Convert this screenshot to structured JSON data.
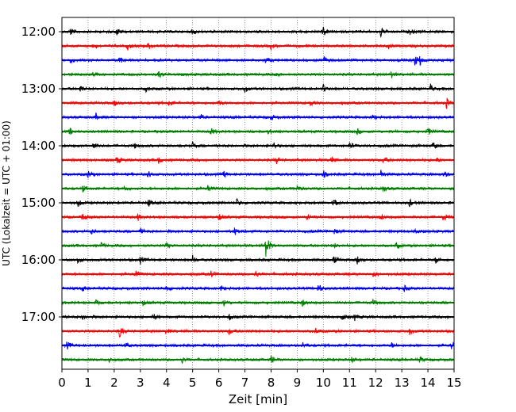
{
  "chart_data": {
    "type": "line",
    "title": "",
    "xlabel": "Zeit  [min]",
    "ylabel": "UTC (Lokalzeit = UTC + 01:00)",
    "xlim": [
      0,
      15
    ],
    "x_ticks": [
      "0",
      "1",
      "2",
      "3",
      "4",
      "5",
      "6",
      "7",
      "8",
      "9",
      "10",
      "11",
      "12",
      "13",
      "14",
      "15"
    ],
    "y_ticks": [
      "12:00",
      "13:00",
      "14:00",
      "15:00",
      "16:00",
      "17:00"
    ],
    "grid_x": true,
    "trace_colors": [
      "#000000",
      "#ff0000",
      "#0000ff",
      "#008000"
    ],
    "traces": [
      {
        "start": "12:00",
        "events": [
          [
            0.3,
            0.8
          ],
          [
            2.1,
            0.7
          ],
          [
            5.0,
            0.6
          ],
          [
            10.0,
            0.8
          ],
          [
            12.2,
            0.9
          ],
          [
            13.3,
            0.5
          ]
        ]
      },
      {
        "start": "12:15",
        "events": [
          [
            1.2,
            0.6
          ],
          [
            2.5,
            0.7
          ],
          [
            3.3,
            0.5
          ],
          [
            8.0,
            0.5
          ],
          [
            12.5,
            0.6
          ]
        ]
      },
      {
        "start": "12:30",
        "events": [
          [
            0.3,
            0.5
          ],
          [
            2.2,
            0.6
          ],
          [
            7.8,
            0.6
          ],
          [
            10.0,
            0.8
          ],
          [
            13.5,
            1.0
          ],
          [
            13.7,
            0.8
          ]
        ]
      },
      {
        "start": "12:45",
        "events": [
          [
            1.2,
            0.5
          ],
          [
            3.7,
            0.7
          ],
          [
            8.2,
            0.5
          ],
          [
            12.6,
            0.6
          ]
        ]
      },
      {
        "start": "13:00",
        "events": [
          [
            0.7,
            0.6
          ],
          [
            3.2,
            0.5
          ],
          [
            7.0,
            0.6
          ],
          [
            10.0,
            0.6
          ],
          [
            14.1,
            0.7
          ]
        ]
      },
      {
        "start": "13:15",
        "events": [
          [
            2.0,
            0.5
          ],
          [
            4.1,
            0.6
          ],
          [
            6.0,
            0.5
          ],
          [
            9.5,
            0.5
          ],
          [
            14.7,
            1.0
          ]
        ]
      },
      {
        "start": "13:30",
        "events": [
          [
            1.3,
            0.5
          ],
          [
            5.3,
            0.5
          ],
          [
            8.0,
            0.5
          ],
          [
            11.9,
            0.5
          ]
        ]
      },
      {
        "start": "13:45",
        "events": [
          [
            0.3,
            0.6
          ],
          [
            5.7,
            0.6
          ],
          [
            7.9,
            0.6
          ],
          [
            11.3,
            0.5
          ],
          [
            14.0,
            0.7
          ]
        ]
      },
      {
        "start": "14:00",
        "events": [
          [
            1.2,
            0.7
          ],
          [
            2.8,
            0.5
          ],
          [
            5.0,
            0.6
          ],
          [
            8.1,
            0.6
          ],
          [
            11.0,
            0.7
          ],
          [
            14.2,
            0.7
          ]
        ]
      },
      {
        "start": "14:15",
        "events": [
          [
            2.1,
            0.7
          ],
          [
            3.7,
            0.5
          ],
          [
            8.2,
            0.6
          ],
          [
            10.3,
            0.7
          ],
          [
            12.3,
            0.6
          ],
          [
            14.3,
            0.6
          ]
        ]
      },
      {
        "start": "14:30",
        "events": [
          [
            1.0,
            0.7
          ],
          [
            3.3,
            0.6
          ],
          [
            6.2,
            0.6
          ],
          [
            10.0,
            0.6
          ],
          [
            12.2,
            0.7
          ],
          [
            14.6,
            0.6
          ]
        ]
      },
      {
        "start": "14:45",
        "events": [
          [
            0.8,
            0.6
          ],
          [
            2.4,
            0.6
          ],
          [
            5.6,
            0.7
          ],
          [
            9.0,
            0.5
          ],
          [
            12.3,
            0.6
          ]
        ]
      },
      {
        "start": "15:00",
        "events": [
          [
            0.6,
            0.7
          ],
          [
            3.3,
            0.6
          ],
          [
            6.7,
            0.7
          ],
          [
            10.4,
            0.7
          ],
          [
            13.3,
            0.6
          ]
        ]
      },
      {
        "start": "15:15",
        "events": [
          [
            0.8,
            0.7
          ],
          [
            2.9,
            0.6
          ],
          [
            6.0,
            0.6
          ],
          [
            9.4,
            0.7
          ],
          [
            12.2,
            0.6
          ],
          [
            14.6,
            0.6
          ]
        ]
      },
      {
        "start": "15:30",
        "events": [
          [
            1.1,
            0.5
          ],
          [
            3.0,
            0.5
          ],
          [
            6.6,
            0.7
          ],
          [
            10.4,
            0.5
          ],
          [
            13.5,
            0.5
          ]
        ]
      },
      {
        "start": "15:45",
        "events": [
          [
            1.5,
            0.5
          ],
          [
            4.0,
            0.5
          ],
          [
            7.8,
            2.6
          ],
          [
            10.4,
            0.5
          ],
          [
            12.8,
            0.5
          ]
        ]
      },
      {
        "start": "16:00",
        "events": [
          [
            0.6,
            0.6
          ],
          [
            3.0,
            0.6
          ],
          [
            5.0,
            0.7
          ],
          [
            10.4,
            0.7
          ],
          [
            11.3,
            0.8
          ],
          [
            14.3,
            0.6
          ]
        ]
      },
      {
        "start": "16:15",
        "events": [
          [
            2.8,
            0.8
          ],
          [
            5.7,
            0.7
          ],
          [
            7.4,
            0.6
          ],
          [
            11.9,
            0.6
          ]
        ]
      },
      {
        "start": "16:30",
        "events": [
          [
            0.8,
            0.5
          ],
          [
            4.0,
            0.5
          ],
          [
            6.1,
            0.5
          ],
          [
            9.8,
            1.0
          ],
          [
            13.1,
            0.5
          ]
        ]
      },
      {
        "start": "16:45",
        "events": [
          [
            1.3,
            0.5
          ],
          [
            3.1,
            0.5
          ],
          [
            6.2,
            0.7
          ],
          [
            9.2,
            0.6
          ],
          [
            11.9,
            0.5
          ]
        ]
      },
      {
        "start": "17:00",
        "events": [
          [
            0.8,
            0.5
          ],
          [
            3.5,
            0.5
          ],
          [
            6.4,
            0.5
          ],
          [
            10.7,
            0.7
          ],
          [
            11.2,
            0.6
          ]
        ]
      },
      {
        "start": "17:15",
        "events": [
          [
            2.2,
            1.2
          ],
          [
            4.0,
            0.5
          ],
          [
            6.4,
            0.6
          ],
          [
            9.7,
            0.5
          ],
          [
            13.3,
            0.6
          ]
        ]
      },
      {
        "start": "17:30",
        "events": [
          [
            0.2,
            0.7
          ],
          [
            2.4,
            0.5
          ],
          [
            9.2,
            0.6
          ],
          [
            12.6,
            0.5
          ],
          [
            14.9,
            0.8
          ]
        ]
      },
      {
        "start": "17:45",
        "events": [
          [
            1.8,
            0.5
          ],
          [
            4.6,
            0.5
          ],
          [
            8.0,
            0.7
          ],
          [
            11.1,
            0.5
          ],
          [
            13.7,
            0.5
          ]
        ]
      }
    ]
  }
}
